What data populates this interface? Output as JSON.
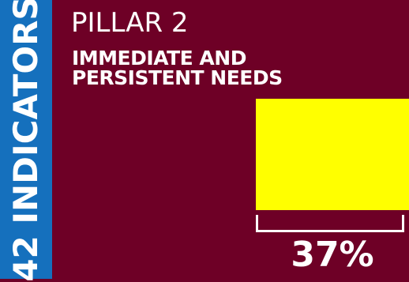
{
  "side_label": "42 INDICATORS",
  "pillar": {
    "title": "PILLAR 2",
    "subtitle_line1": "IMMEDIATE AND",
    "subtitle_line2": "PERSISTENT NEEDS"
  },
  "meter": {
    "percent_label": "37%",
    "value_percent": 37
  },
  "colors": {
    "background": "#6e0026",
    "side_band": "#1570bd",
    "meter_fill": "#ffff00",
    "text": "#ffffff"
  }
}
